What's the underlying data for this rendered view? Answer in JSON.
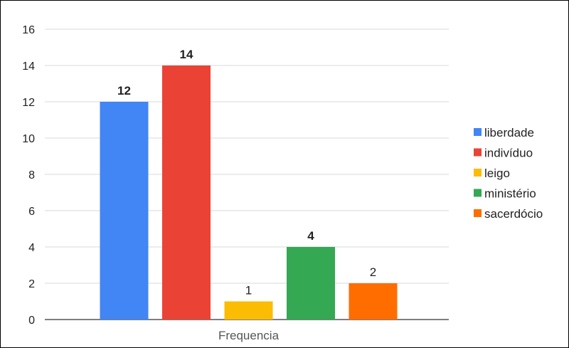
{
  "chart_data": {
    "type": "bar",
    "categories": [
      "Frequencia"
    ],
    "series": [
      {
        "name": "liberdade",
        "values": [
          12
        ],
        "color": "#4285F4",
        "label_bold": true
      },
      {
        "name": "indivíduo",
        "values": [
          14
        ],
        "color": "#EA4335",
        "label_bold": true
      },
      {
        "name": "leigo",
        "values": [
          1
        ],
        "color": "#FBBC04",
        "label_bold": false
      },
      {
        "name": "ministério",
        "values": [
          4
        ],
        "color": "#34A853",
        "label_bold": true
      },
      {
        "name": "sacerdócio",
        "values": [
          2
        ],
        "color": "#FF6D01",
        "label_bold": false
      }
    ],
    "ylim": [
      0,
      16
    ],
    "yticks": [
      "0",
      "2",
      "4",
      "6",
      "8",
      "10",
      "12",
      "14",
      "16"
    ],
    "data_labels": [
      "12",
      "14",
      "1",
      "4",
      "2"
    ],
    "grid": true,
    "legend_position": "right"
  }
}
